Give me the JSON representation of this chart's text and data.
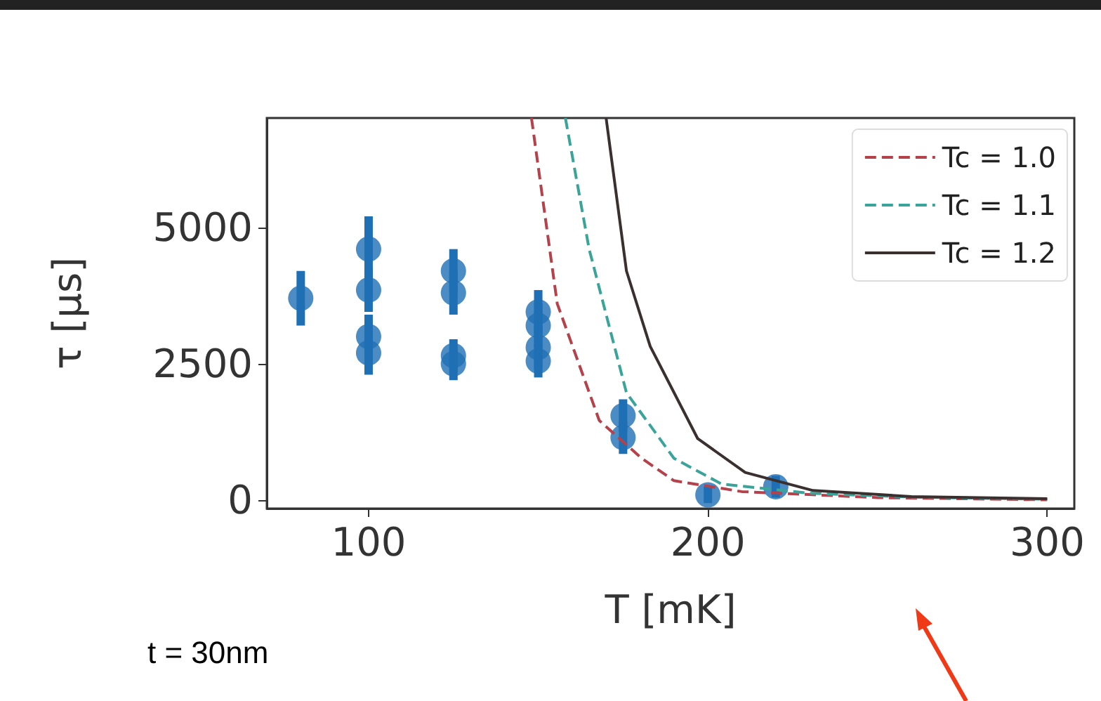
{
  "chart_data": {
    "type": "scatter",
    "xlabel": "T [mK]",
    "ylabel": "τ [μs]",
    "xlim": [
      70,
      308
    ],
    "ylim": [
      -150,
      7000
    ],
    "xticks": [
      100,
      200,
      300
    ],
    "yticks": [
      0,
      2500,
      5000
    ],
    "grid": false,
    "legend": "top right",
    "annotations": [
      "t = 30nm"
    ],
    "series": [
      {
        "color": "#1f6fb5",
        "marker": "circle",
        "x": [
          80,
          100,
          100,
          100,
          100,
          125,
          125,
          125,
          125,
          150,
          150,
          150,
          150,
          175,
          175,
          200,
          220
        ],
        "values": [
          3700,
          4600,
          3850,
          3000,
          2700,
          4200,
          3800,
          2650,
          2500,
          3450,
          3200,
          2800,
          2550,
          1550,
          1150,
          100,
          250
        ],
        "errors": [
          500,
          600,
          400,
          400,
          400,
          400,
          400,
          300,
          300,
          400,
          400,
          400,
          300,
          300,
          300,
          150,
          200
        ]
      },
      {
        "type": "line",
        "name": "Tc = 1.0",
        "color": "#b5414a",
        "line_style": "dashed",
        "marker": "none",
        "x": [
          148,
          155.6,
          168,
          180.5,
          190,
          210,
          250,
          300
        ],
        "values": [
          7000,
          3600,
          1460,
          770,
          360,
          160,
          50,
          10
        ]
      },
      {
        "type": "line",
        "name": "Tc = 1.1",
        "color": "#3aa39a",
        "line_style": "dashed",
        "marker": "none",
        "x": [
          158,
          165,
          176,
          190,
          204,
          230,
          260,
          300
        ],
        "values": [
          7000,
          4600,
          1970,
          770,
          300,
          130,
          60,
          20
        ]
      },
      {
        "type": "line",
        "name": "Tc = 1.2",
        "color": "#3a3030",
        "line_style": "solid",
        "marker": "none",
        "x": [
          170,
          176,
          183,
          197,
          211,
          231,
          260,
          300
        ],
        "values": [
          7000,
          4200,
          2820,
          1130,
          510,
          180,
          70,
          30
        ]
      }
    ]
  }
}
